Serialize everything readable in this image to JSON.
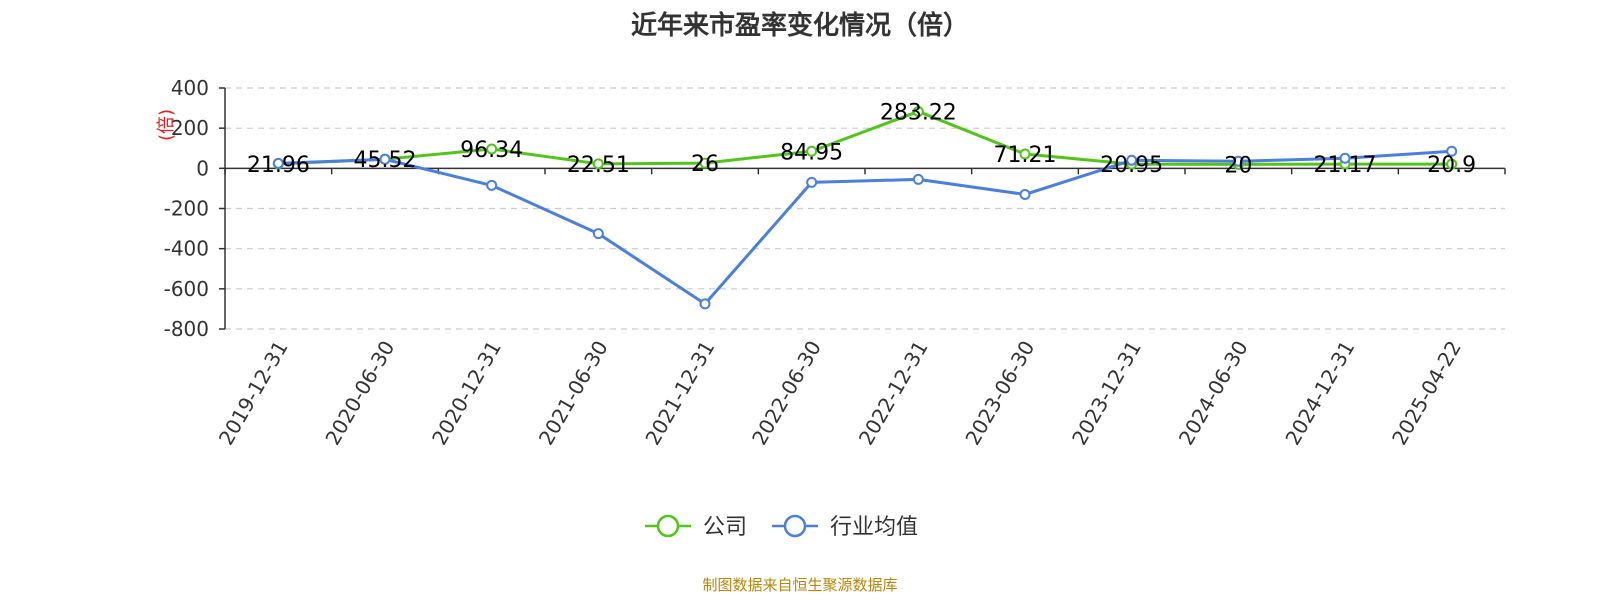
{
  "chart_data": {
    "type": "line",
    "title": "近年来市盈率变化情况（倍）",
    "ylabel": "(倍)",
    "ylim": [
      -800,
      400
    ],
    "yticks": [
      400,
      200,
      0,
      -200,
      -400,
      -600,
      -800
    ],
    "categories": [
      "2019-12-31",
      "2020-06-30",
      "2020-12-31",
      "2021-06-30",
      "2021-12-31",
      "2022-06-30",
      "2022-12-31",
      "2023-06-30",
      "2023-12-31",
      "2024-06-30",
      "2024-12-31",
      "2025-04-22"
    ],
    "series": [
      {
        "name": "公司",
        "color": "#52c41a",
        "values": [
          21.96,
          45.52,
          96.34,
          22.51,
          26,
          84.95,
          283.22,
          71.21,
          20.95,
          20,
          21.17,
          20.9
        ],
        "labels": [
          "21.96",
          "45.52",
          "96.34",
          "22.51",
          "26",
          "84.95",
          "283.22",
          "71.21",
          "20.95",
          "20",
          "21.17",
          "20.9"
        ]
      },
      {
        "name": "行业均值",
        "color": "#4a7fdc",
        "values": [
          25,
          45,
          -85,
          -325,
          -675,
          -70,
          -55,
          -130,
          40,
          35,
          50,
          85
        ]
      }
    ],
    "grid": true,
    "legend_position": "bottom-center"
  },
  "source": "制图数据来自恒生聚源数据库"
}
